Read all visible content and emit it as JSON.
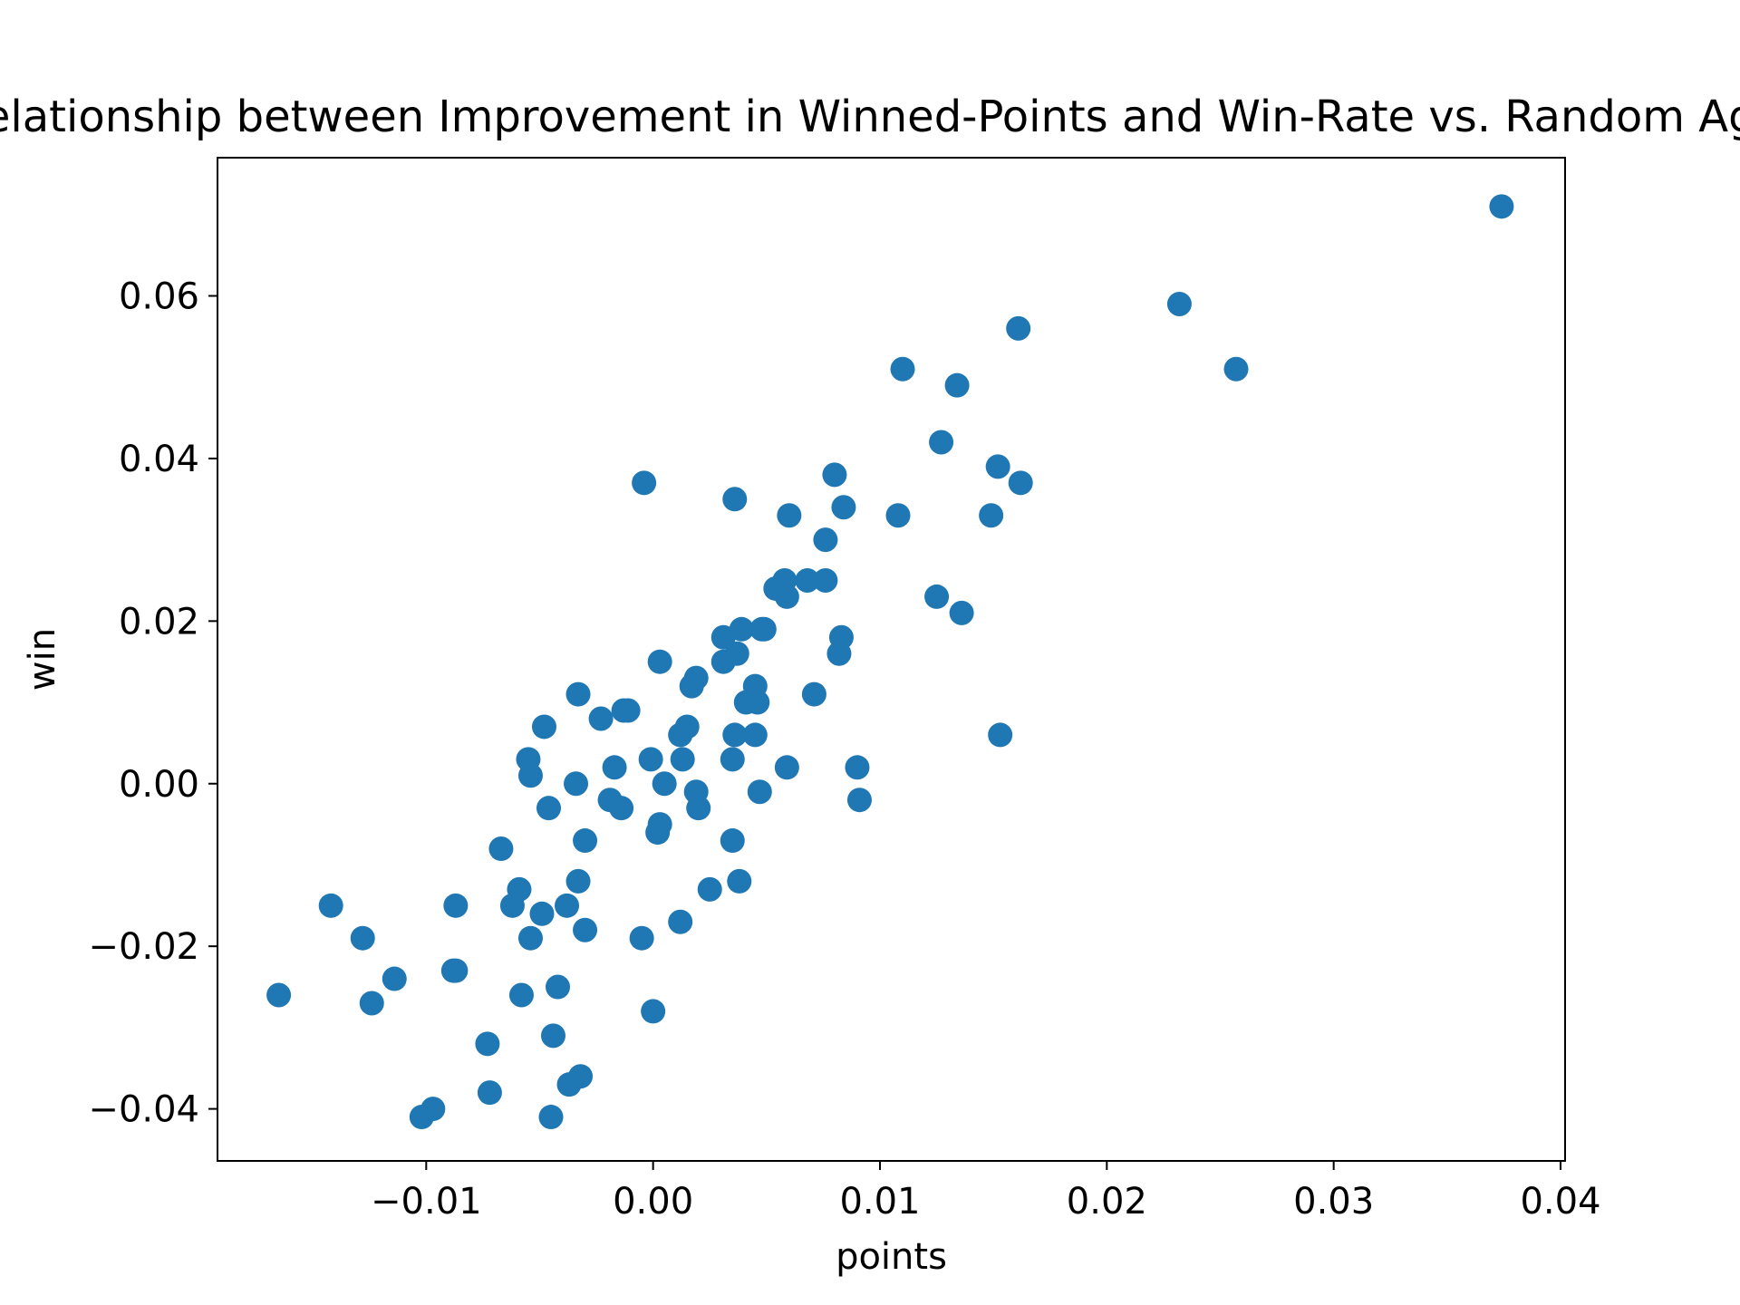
{
  "chart_data": {
    "type": "scatter",
    "title": "Relationship between Improvement in Winned-Points and Win-Rate vs. Random Agent",
    "xlabel": "points",
    "ylabel": "win",
    "xlim": [
      -0.0192,
      0.0402
    ],
    "ylim": [
      -0.0464,
      0.077
    ],
    "xticks": [
      -0.01,
      0.0,
      0.01,
      0.02,
      0.03,
      0.04
    ],
    "xtick_labels": [
      "−0.01",
      "0.00",
      "0.01",
      "0.02",
      "0.03",
      "0.04"
    ],
    "yticks": [
      -0.04,
      -0.02,
      0.0,
      0.02,
      0.04,
      0.06
    ],
    "ytick_labels": [
      "−0.04",
      "−0.02",
      "0.00",
      "0.02",
      "0.04",
      "0.06"
    ],
    "grid": false,
    "legend": "none",
    "series": [
      {
        "color": "#1f77b4",
        "x": [
          -0.0165,
          -0.0142,
          -0.0128,
          -0.0124,
          -0.0114,
          -0.0102,
          -0.0097,
          -0.0088,
          -0.0087,
          -0.0087,
          -0.0073,
          -0.0072,
          -0.0067,
          -0.0062,
          -0.0059,
          -0.0058,
          -0.0055,
          -0.0054,
          -0.0054,
          -0.0049,
          -0.0048,
          -0.0046,
          -0.0045,
          -0.0044,
          -0.0042,
          -0.0038,
          -0.0037,
          -0.0034,
          -0.0033,
          -0.0033,
          -0.0032,
          -0.003,
          -0.003,
          -0.0023,
          -0.0019,
          -0.0017,
          -0.0014,
          -0.0013,
          -0.0011,
          -0.0005,
          -0.0004,
          -0.0001,
          0.0,
          0.0002,
          0.0003,
          0.0003,
          0.0005,
          0.0012,
          0.0012,
          0.0013,
          0.0015,
          0.0017,
          0.0019,
          0.0019,
          0.002,
          0.0025,
          0.0031,
          0.0031,
          0.0035,
          0.0035,
          0.0036,
          0.0036,
          0.0037,
          0.0038,
          0.0039,
          0.0041,
          0.0045,
          0.0045,
          0.0046,
          0.0047,
          0.0048,
          0.0049,
          0.0054,
          0.0058,
          0.0059,
          0.0059,
          0.006,
          0.0068,
          0.0071,
          0.0076,
          0.0076,
          0.008,
          0.0082,
          0.0083,
          0.0084,
          0.009,
          0.0091,
          0.0108,
          0.011,
          0.0125,
          0.0127,
          0.0134,
          0.0136,
          0.0149,
          0.0152,
          0.0153,
          0.0161,
          0.0162,
          0.0232,
          0.0257,
          0.0374
        ],
        "y": [
          -0.026,
          -0.015,
          -0.019,
          -0.027,
          -0.024,
          -0.041,
          -0.04,
          -0.023,
          -0.023,
          -0.015,
          -0.032,
          -0.038,
          -0.008,
          -0.015,
          -0.013,
          -0.026,
          0.003,
          0.001,
          -0.019,
          -0.016,
          0.007,
          -0.003,
          -0.041,
          -0.031,
          -0.025,
          -0.015,
          -0.037,
          0.0,
          -0.012,
          0.011,
          -0.036,
          -0.007,
          -0.018,
          0.008,
          -0.002,
          0.002,
          -0.003,
          0.009,
          0.009,
          -0.019,
          0.037,
          0.003,
          -0.028,
          -0.006,
          -0.005,
          0.015,
          0.0,
          0.006,
          -0.017,
          0.003,
          0.007,
          0.012,
          0.013,
          -0.001,
          -0.003,
          -0.013,
          0.018,
          0.015,
          -0.007,
          0.003,
          0.035,
          0.006,
          0.016,
          -0.012,
          0.019,
          0.01,
          0.012,
          0.006,
          0.01,
          -0.001,
          0.019,
          0.019,
          0.024,
          0.025,
          0.023,
          0.002,
          0.033,
          0.025,
          0.011,
          0.03,
          0.025,
          0.038,
          0.016,
          0.018,
          0.034,
          0.002,
          -0.002,
          0.033,
          0.051,
          0.023,
          0.042,
          0.049,
          0.021,
          0.033,
          0.039,
          0.006,
          0.056,
          0.037,
          0.059,
          0.051,
          0.071
        ]
      }
    ]
  }
}
